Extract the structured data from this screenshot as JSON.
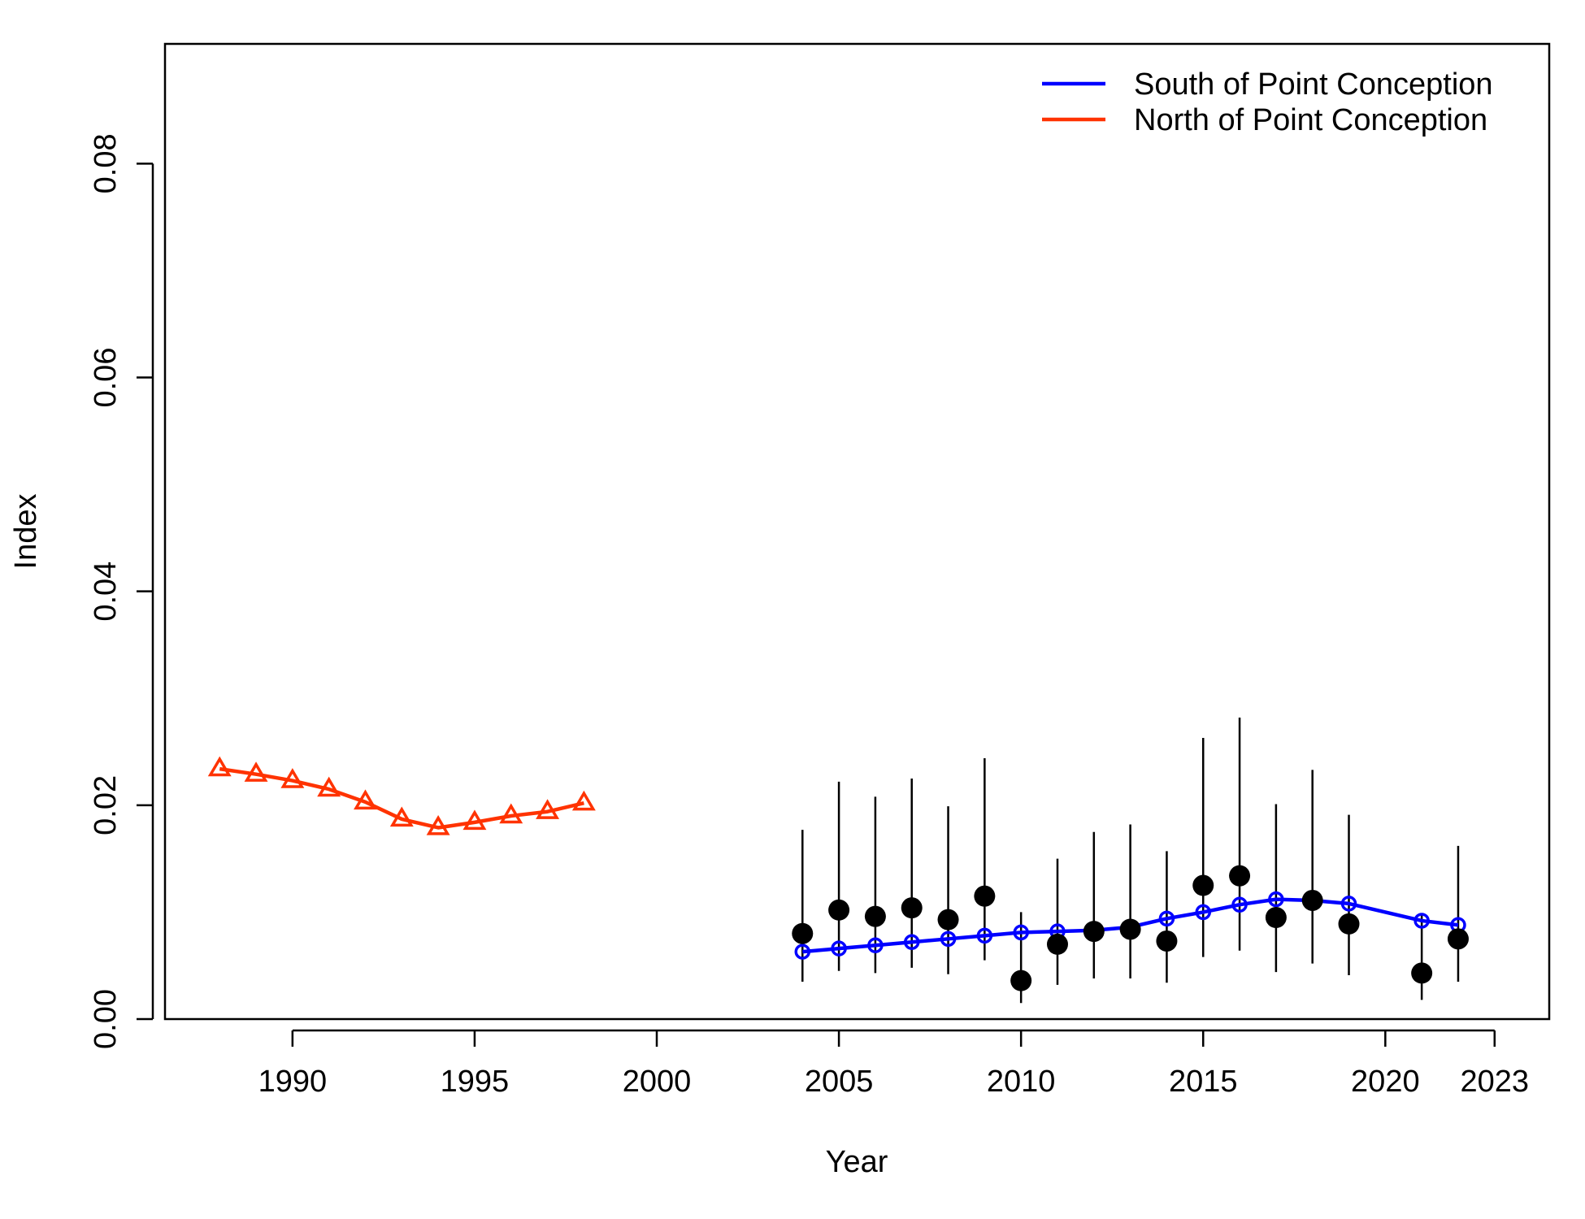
{
  "chart_data": {
    "type": "line",
    "xlabel": "Year",
    "ylabel": "Index",
    "xlim": [
      1986.5,
      2024.5
    ],
    "ylim": [
      0,
      0.0912
    ],
    "x_ticks": [
      {
        "value": 1990,
        "label": "1990"
      },
      {
        "value": 1995,
        "label": "1995"
      },
      {
        "value": 2000,
        "label": "2000"
      },
      {
        "value": 2005,
        "label": "2005"
      },
      {
        "value": 2010,
        "label": "2010"
      },
      {
        "value": 2015,
        "label": "2015"
      },
      {
        "value": 2020,
        "label": "2020"
      },
      {
        "value": 2023,
        "label": "2023"
      }
    ],
    "y_ticks": [
      {
        "value": 0.0,
        "label": "0.00"
      },
      {
        "value": 0.02,
        "label": "0.02"
      },
      {
        "value": 0.04,
        "label": "0.04"
      },
      {
        "value": 0.06,
        "label": "0.06"
      },
      {
        "value": 0.08,
        "label": "0.08"
      }
    ],
    "legend_position": "top-right",
    "series": [
      {
        "name": "South of Point Conception",
        "color": "#0000ff",
        "marker": "open-circle",
        "x": [
          2004,
          2005,
          2006,
          2007,
          2008,
          2009,
          2010,
          2011,
          2012,
          2013,
          2014,
          2015,
          2016,
          2017,
          2018,
          2019,
          2021,
          2022
        ],
        "y": [
          0.0063,
          0.0066,
          0.0069,
          0.0072,
          0.0075,
          0.0078,
          0.0081,
          0.0082,
          0.0083,
          0.0086,
          0.0094,
          0.01,
          0.0107,
          0.0112,
          0.0111,
          0.0108,
          0.0092,
          0.0088
        ]
      },
      {
        "name": "North of Point Conception",
        "color": "#ff3300",
        "marker": "open-triangle",
        "x": [
          1988,
          1989,
          1990,
          1991,
          1992,
          1993,
          1994,
          1995,
          1996,
          1997,
          1998
        ],
        "y": [
          0.0234,
          0.0229,
          0.0223,
          0.0215,
          0.0203,
          0.0187,
          0.0179,
          0.0184,
          0.019,
          0.0194,
          0.0202
        ]
      }
    ],
    "observations": {
      "color": "#000000",
      "marker": "filled-circle",
      "x": [
        2004,
        2005,
        2006,
        2007,
        2008,
        2009,
        2010,
        2011,
        2012,
        2013,
        2014,
        2015,
        2016,
        2017,
        2018,
        2019,
        2021,
        2022
      ],
      "y": [
        0.008,
        0.0102,
        0.0096,
        0.0104,
        0.0093,
        0.0115,
        0.0036,
        0.007,
        0.0082,
        0.0084,
        0.0073,
        0.0125,
        0.0134,
        0.0095,
        0.0111,
        0.0089,
        0.0043,
        0.0075
      ],
      "lower": [
        0.0035,
        0.0045,
        0.0043,
        0.0048,
        0.0042,
        0.0055,
        0.0015,
        0.0032,
        0.0038,
        0.0038,
        0.0034,
        0.0058,
        0.0064,
        0.0044,
        0.0052,
        0.0041,
        0.0018,
        0.0035
      ],
      "upper": [
        0.0177,
        0.0222,
        0.0208,
        0.0225,
        0.0199,
        0.0244,
        0.01,
        0.015,
        0.0175,
        0.0182,
        0.0157,
        0.0263,
        0.0282,
        0.0201,
        0.0233,
        0.0191,
        0.0098,
        0.0162
      ]
    }
  }
}
